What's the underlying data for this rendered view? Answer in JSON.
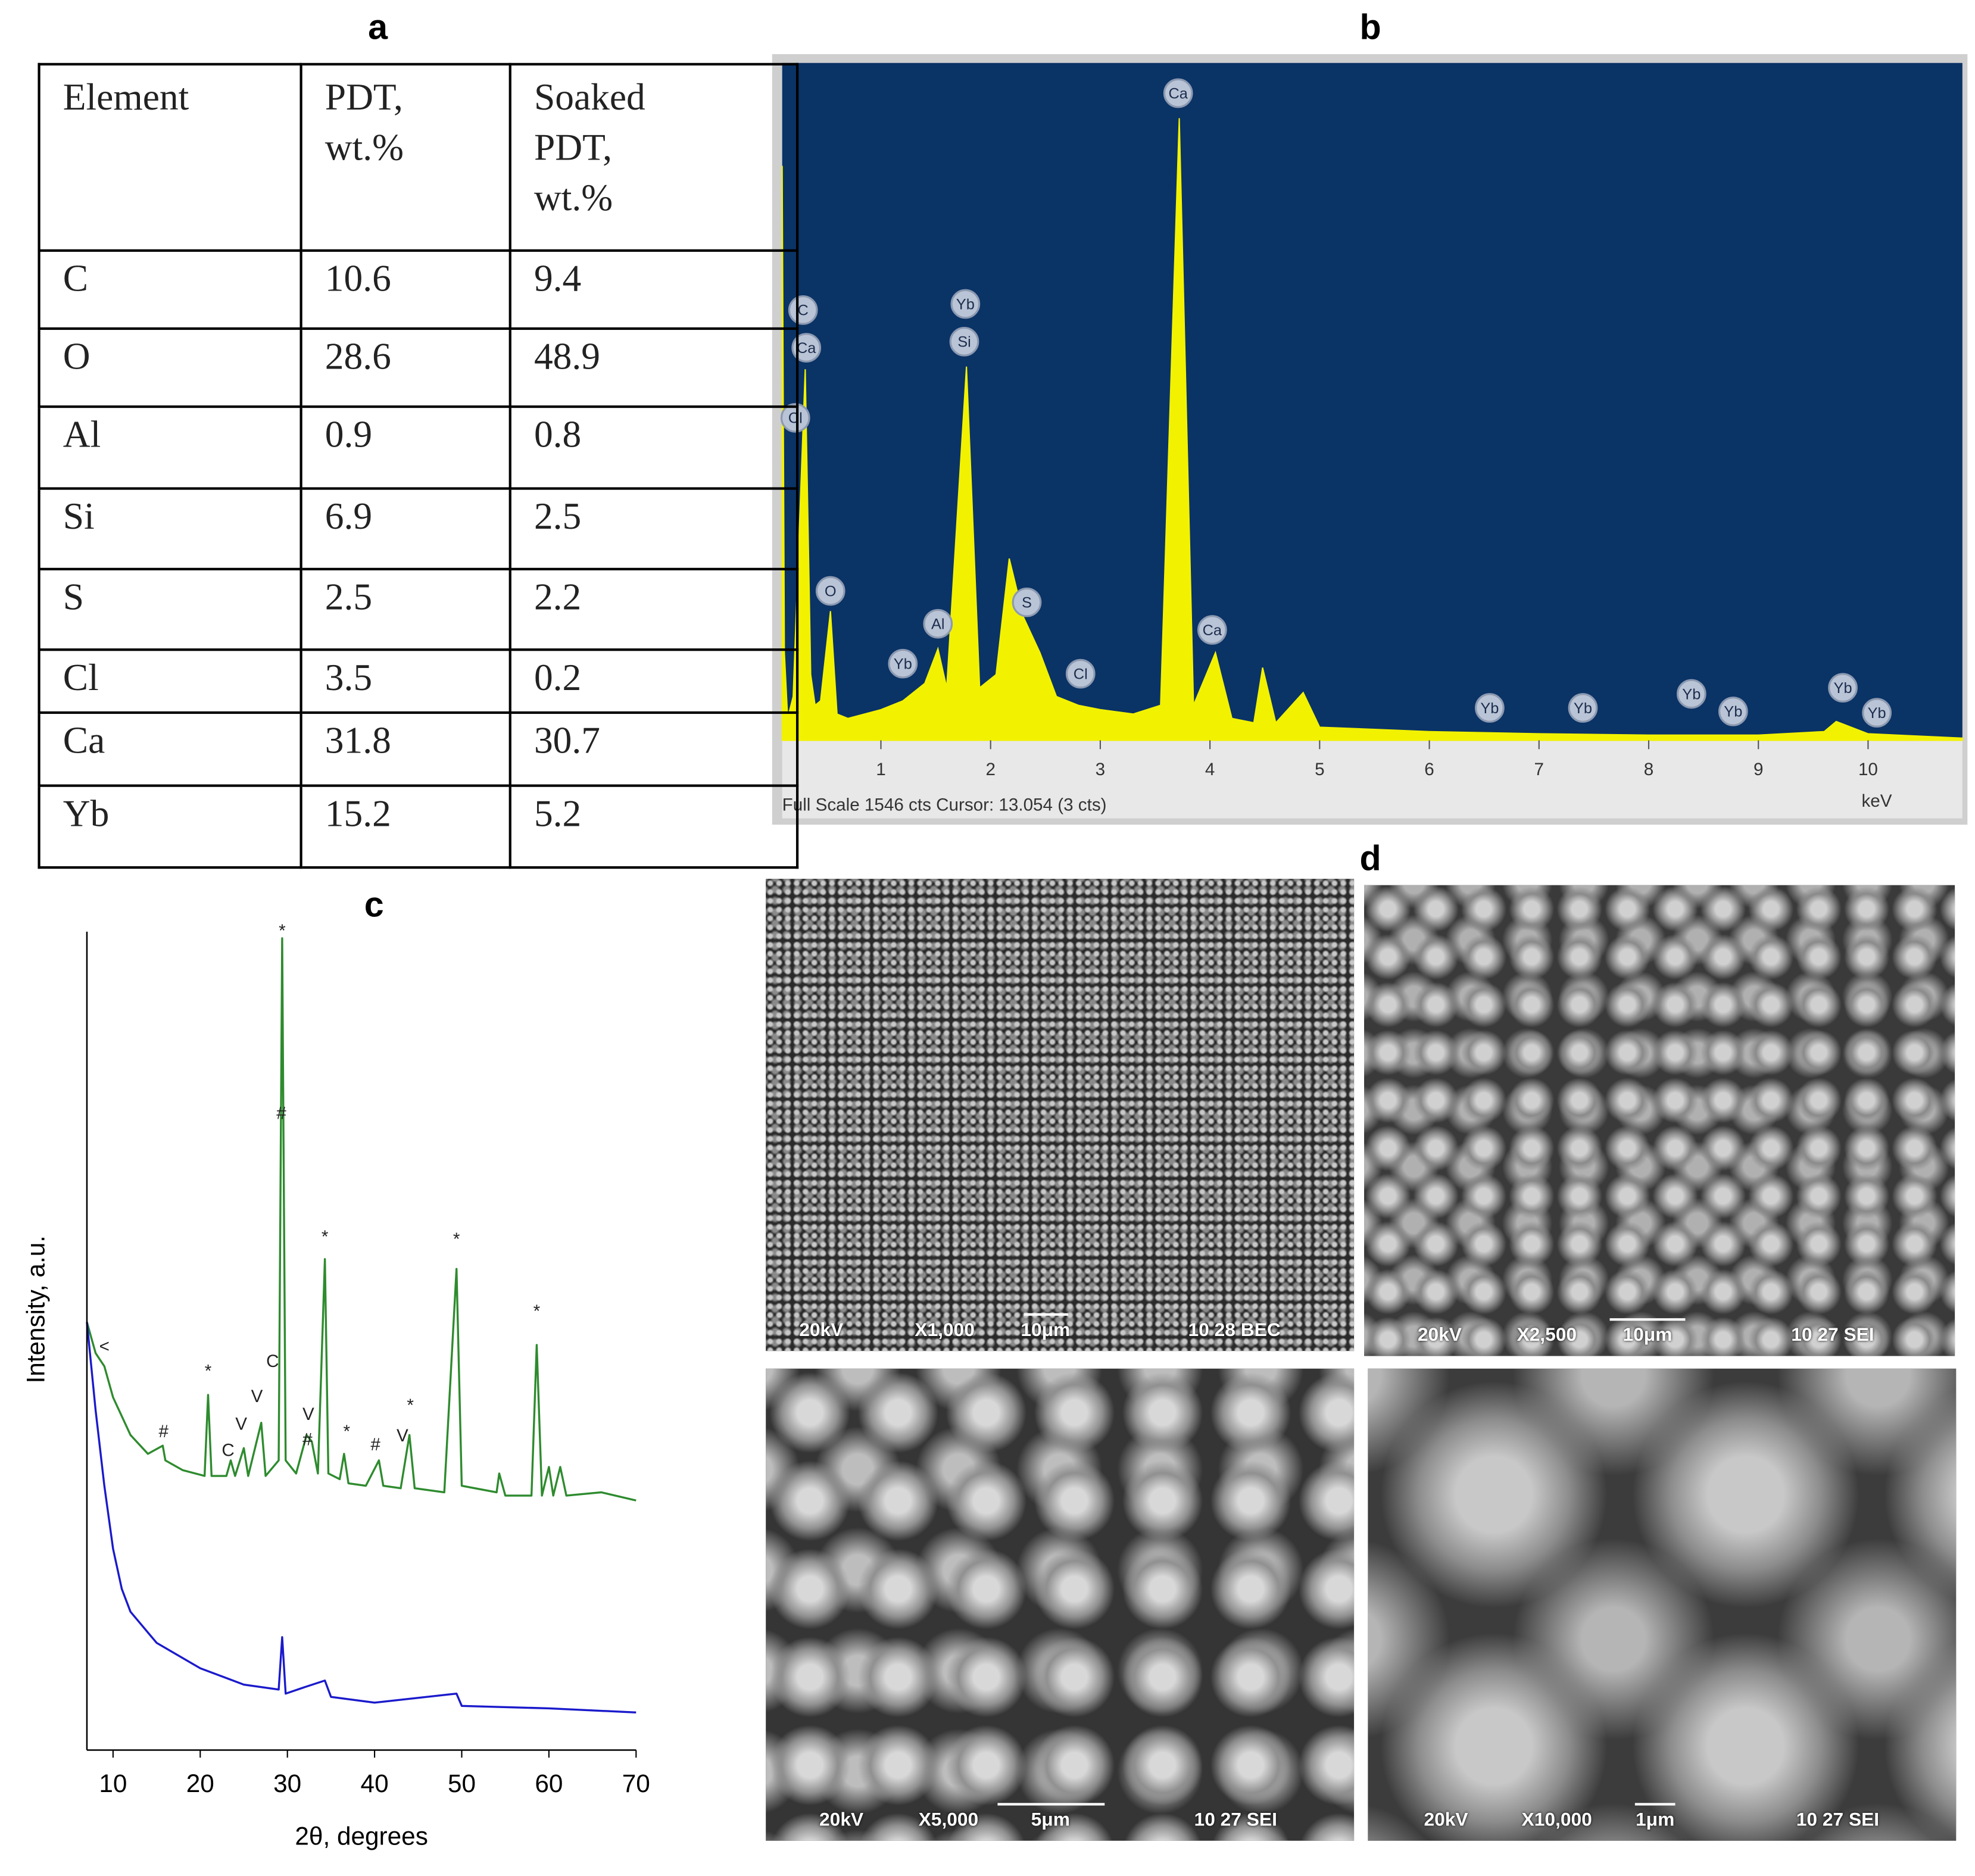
{
  "panel_labels": [
    "a",
    "b",
    "c",
    "d"
  ],
  "table": {
    "header": [
      "Element",
      "PDT, wt.%",
      "Soaked PDT, wt.%"
    ],
    "rows": [
      [
        "C",
        10.6,
        9.4
      ],
      [
        "O",
        28.6,
        48.9
      ],
      [
        "Al",
        0.9,
        0.8
      ],
      [
        "Si",
        6.9,
        2.5
      ],
      [
        "S",
        2.5,
        2.2
      ],
      [
        "Cl",
        3.5,
        0.2
      ],
      [
        "Ca",
        31.8,
        30.7
      ],
      [
        "Yb",
        15.2,
        5.2
      ]
    ]
  },
  "chart_data": [
    {
      "type": "area",
      "color": "#f2f200",
      "background": "#0a3366",
      "x_label": "keV",
      "status": "Full Scale 1546 cts Cursor: 13.054  (3 cts)",
      "xlim": [
        0.1,
        10.86
      ],
      "xticks": [
        1,
        2,
        3,
        4,
        5,
        6,
        7,
        8,
        9,
        10
      ],
      "ylim": [
        0,
        1546
      ],
      "x": [
        0.1,
        0.12,
        0.15,
        0.2,
        0.31,
        0.36,
        0.4,
        0.45,
        0.54,
        0.6,
        0.7,
        1.0,
        1.2,
        1.4,
        1.52,
        1.6,
        1.78,
        1.9,
        2.05,
        2.17,
        2.3,
        2.45,
        2.6,
        2.8,
        3.0,
        3.3,
        3.55,
        3.72,
        3.85,
        4.05,
        4.2,
        4.4,
        4.48,
        4.6,
        4.85,
        5.0,
        5.5,
        6.0,
        7.0,
        8.0,
        9.0,
        9.6,
        9.71,
        10.0,
        10.86
      ],
      "values": [
        1311,
        200,
        50,
        100,
        847,
        150,
        80,
        90,
        295,
        60,
        50,
        70,
        90,
        130,
        209,
        120,
        853,
        120,
        150,
        415,
        281,
        200,
        100,
        80,
        70,
        60,
        80,
        1420,
        80,
        200,
        50,
        40,
        166,
        40,
        109,
        30,
        25,
        20,
        15,
        12,
        12,
        20,
        43,
        15,
        5
      ],
      "annotations": [
        {
          "text": "C",
          "x": 0.29,
          "y": 982
        },
        {
          "text": "Ca",
          "x": 0.32,
          "y": 896
        },
        {
          "text": "Cl",
          "x": 0.22,
          "y": 736
        },
        {
          "text": "O",
          "x": 0.54,
          "y": 341
        },
        {
          "text": "Yb",
          "x": 1.2,
          "y": 175
        },
        {
          "text": "Al",
          "x": 1.52,
          "y": 266
        },
        {
          "text": "Yb",
          "x": 1.77,
          "y": 996
        },
        {
          "text": "Si",
          "x": 1.76,
          "y": 910
        },
        {
          "text": "S",
          "x": 2.33,
          "y": 315
        },
        {
          "text": "Cl",
          "x": 2.82,
          "y": 152
        },
        {
          "text": "Ca",
          "x": 3.71,
          "y": 1477
        },
        {
          "text": "Ca",
          "x": 4.02,
          "y": 252
        },
        {
          "text": "Yb",
          "x": 6.55,
          "y": 74
        },
        {
          "text": "Yb",
          "x": 7.4,
          "y": 74
        },
        {
          "text": "Yb",
          "x": 8.39,
          "y": 106
        },
        {
          "text": "Yb",
          "x": 8.77,
          "y": 66
        },
        {
          "text": "Yb",
          "x": 9.77,
          "y": 120
        },
        {
          "text": "Yb",
          "x": 10.08,
          "y": 63
        }
      ]
    },
    {
      "type": "line",
      "x_label": "2θ, degrees",
      "y_label": "Intensity, a.u.",
      "xlim": [
        7,
        70
      ],
      "xticks": [
        10,
        20,
        30,
        40,
        50,
        60,
        70
      ],
      "ylim": [
        0,
        100
      ],
      "series": [
        {
          "color": "#2e8b2e",
          "x": [
            7,
            8,
            9,
            10,
            12,
            14,
            15.7,
            16,
            18,
            20.5,
            20.9,
            21.3,
            23,
            23.5,
            24,
            25,
            25.5,
            27,
            27.5,
            29,
            29.4,
            29.8,
            31,
            32.2,
            32.8,
            33.5,
            34.3,
            34.7,
            36,
            36.5,
            37,
            39,
            40.5,
            41,
            43,
            44,
            44.6,
            48,
            49.4,
            50,
            54,
            54.3,
            55,
            58,
            58.6,
            59.2,
            60,
            60.5,
            61.3,
            62,
            66,
            70
          ],
          "values": [
            52.3,
            48.5,
            46.9,
            43.1,
            38.5,
            36.2,
            37.2,
            35.4,
            34.2,
            33.5,
            43.4,
            33.5,
            33.5,
            35.4,
            33.5,
            36.9,
            33.5,
            40,
            33.5,
            35.4,
            99.2,
            35.4,
            33.8,
            38.5,
            37.7,
            33.8,
            60,
            33.8,
            33.1,
            36.2,
            32.6,
            32.3,
            35.4,
            32.3,
            32,
            38.5,
            32,
            31.5,
            58.8,
            32.3,
            31.5,
            33.8,
            31.1,
            31.1,
            49.5,
            31.1,
            34.6,
            31.1,
            34.6,
            31.1,
            31.5,
            30.5
          ]
        },
        {
          "color": "#1a1acc",
          "x": [
            7,
            8,
            9,
            10,
            11,
            12,
            15,
            20,
            25,
            29,
            29.4,
            29.8,
            32,
            34.3,
            35,
            40,
            49.4,
            50,
            60,
            70
          ],
          "values": [
            52.3,
            41.5,
            32.3,
            24.6,
            19.7,
            16.9,
            13.1,
            10,
            8,
            7.4,
            13.8,
            6.9,
            7.7,
            8.5,
            6.5,
            5.8,
            6.9,
            5.4,
            5.1,
            4.6
          ]
        }
      ],
      "annotations": [
        {
          "text": "*",
          "x": 29.4,
          "y": 100
        },
        {
          "text": "#",
          "x": 29.3,
          "y": 77.7
        },
        {
          "text": "*",
          "x": 34.3,
          "y": 62.6
        },
        {
          "text": "*",
          "x": 49.4,
          "y": 62.3
        },
        {
          "text": "*",
          "x": 58.6,
          "y": 53.5
        },
        {
          "text": "<",
          "x": 9.0,
          "y": 49.2
        },
        {
          "text": "*",
          "x": 20.9,
          "y": 46.2
        },
        {
          "text": "C",
          "x": 28.3,
          "y": 47.4
        },
        {
          "text": "V",
          "x": 26.5,
          "y": 43.1
        },
        {
          "text": "V",
          "x": 24.7,
          "y": 39.7
        },
        {
          "text": "C",
          "x": 23.2,
          "y": 36.5
        },
        {
          "text": "#",
          "x": 15.8,
          "y": 38.8
        },
        {
          "text": "V",
          "x": 32.4,
          "y": 40.9
        },
        {
          "text": "#",
          "x": 32.3,
          "y": 37.8
        },
        {
          "text": "*",
          "x": 36.8,
          "y": 38.8
        },
        {
          "text": "#",
          "x": 40.1,
          "y": 37.2
        },
        {
          "text": "V",
          "x": 43.2,
          "y": 38.3
        },
        {
          "text": "*",
          "x": 44.1,
          "y": 42
        }
      ]
    }
  ],
  "sem_images": [
    {
      "voltage": "20kV",
      "magnification": "X1,000",
      "scale": "10μm",
      "info": "10 28 BEC"
    },
    {
      "voltage": "20kV",
      "magnification": "X2,500",
      "scale": "10μm",
      "info": "10 27 SEI"
    },
    {
      "voltage": "20kV",
      "magnification": "X5,000",
      "scale": "5μm",
      "info": "10 27 SEI"
    },
    {
      "voltage": "20kV",
      "magnification": "X10,000",
      "scale": "1μm",
      "info": "10 27 SEI"
    }
  ]
}
